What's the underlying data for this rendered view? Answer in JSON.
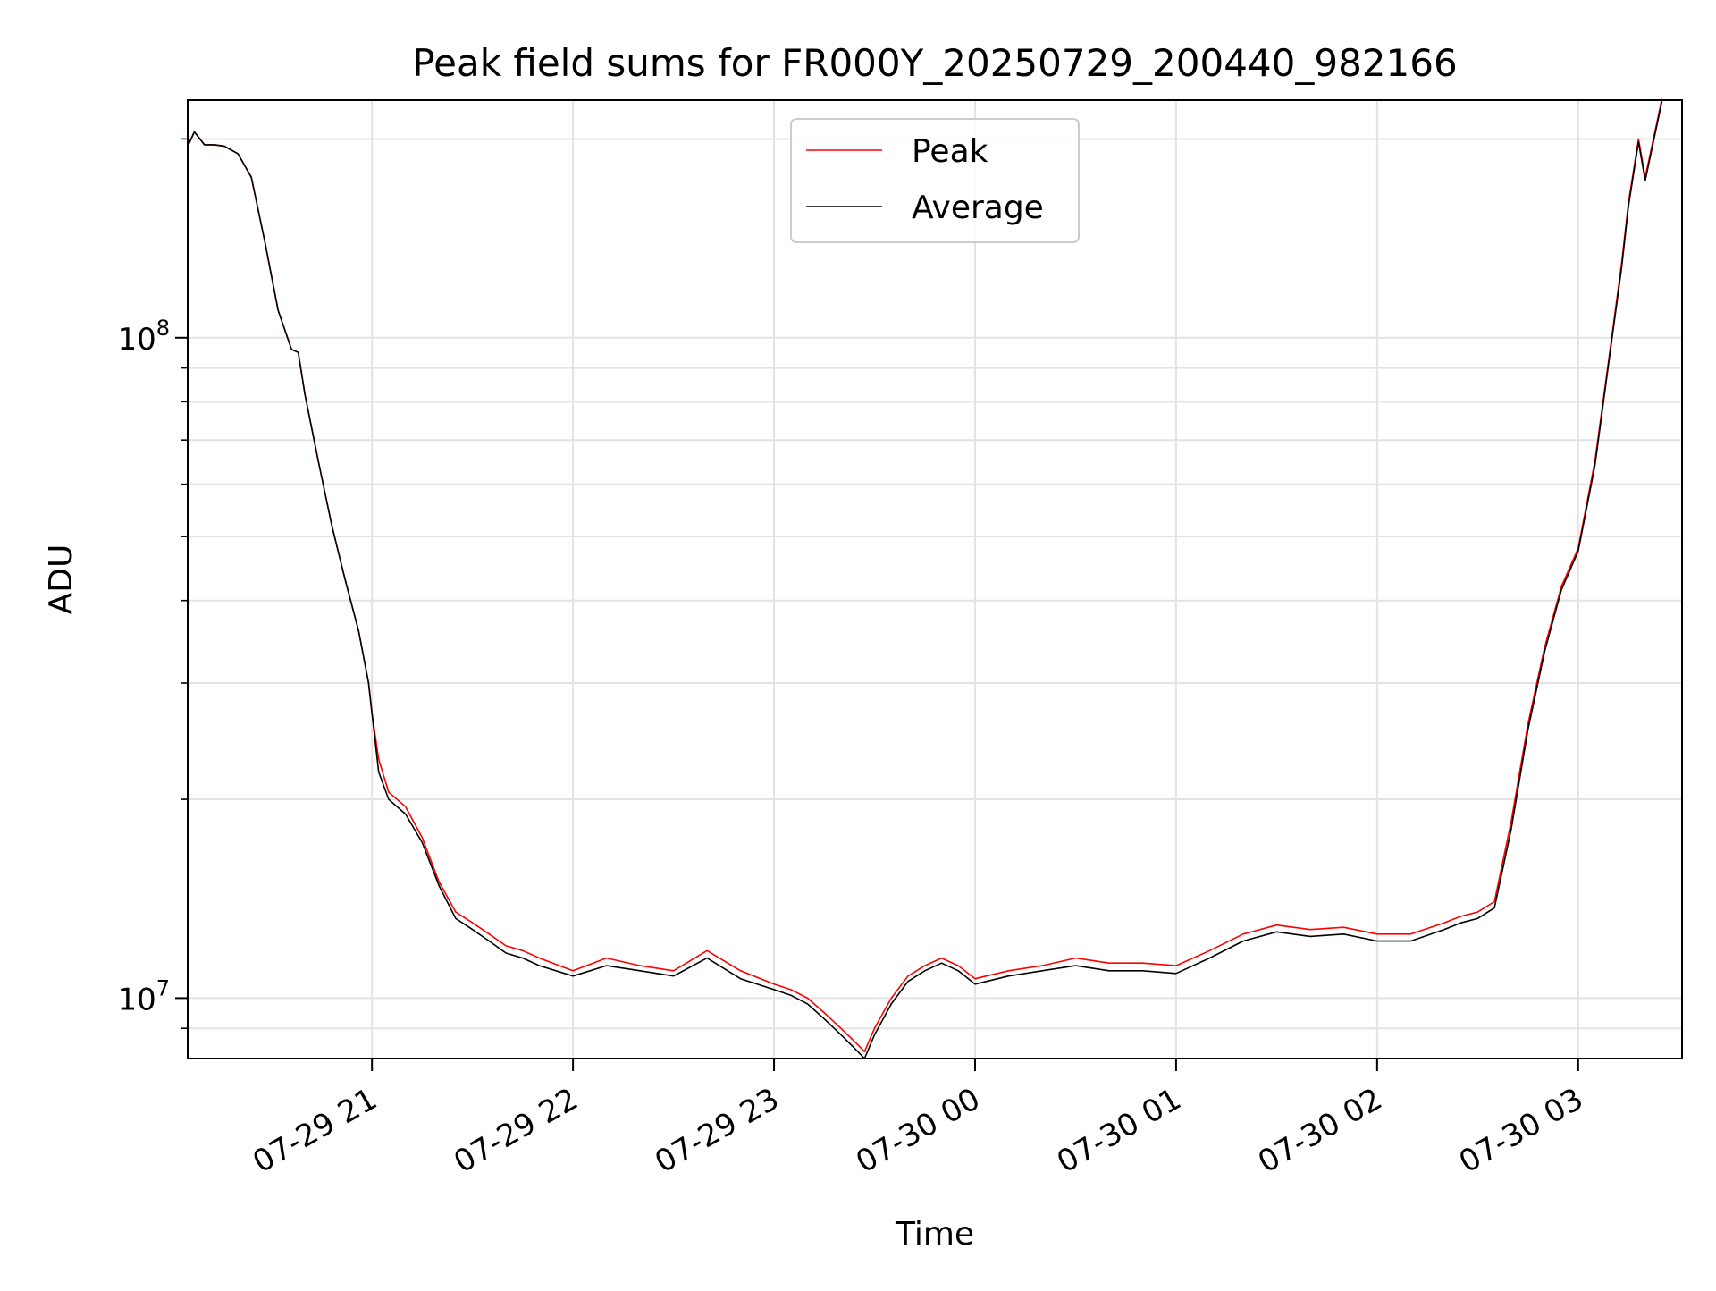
{
  "chart_data": {
    "type": "line",
    "title": "Peak field sums for FR000Y_20250729_200440_982166",
    "xlabel": "Time",
    "ylabel": "ADU",
    "yscale": "log",
    "grid": true,
    "legend_position": "top-center",
    "xlim": [
      "2025-07-29 20:05",
      "2025-07-30 03:31"
    ],
    "ylim": [
      8100000,
      229000000
    ],
    "x_ticks": [
      {
        "x": "2025-07-29 21:00",
        "label": "07-29 21"
      },
      {
        "x": "2025-07-29 22:00",
        "label": "07-29 22"
      },
      {
        "x": "2025-07-29 23:00",
        "label": "07-29 23"
      },
      {
        "x": "2025-07-30 00:00",
        "label": "07-30 00"
      },
      {
        "x": "2025-07-30 01:00",
        "label": "07-30 01"
      },
      {
        "x": "2025-07-30 02:00",
        "label": "07-30 02"
      },
      {
        "x": "2025-07-30 03:00",
        "label": "07-30 03"
      }
    ],
    "y_major_ticks": [
      {
        "value": 10000000,
        "base": "10",
        "exp": "7"
      },
      {
        "value": 100000000,
        "base": "10",
        "exp": "8"
      }
    ],
    "y_minor_ticks": [
      9000000,
      20000000,
      30000000,
      40000000,
      50000000,
      60000000,
      70000000,
      80000000,
      90000000,
      200000000
    ],
    "series": [
      {
        "name": "Peak",
        "color": "#ff0000",
        "x": [
          "2025-07-29 20:05",
          "2025-07-29 20:07",
          "2025-07-29 20:10",
          "2025-07-29 20:13",
          "2025-07-29 20:16",
          "2025-07-29 20:20",
          "2025-07-29 20:24",
          "2025-07-29 20:28",
          "2025-07-29 20:32",
          "2025-07-29 20:36",
          "2025-07-29 20:38",
          "2025-07-29 20:40",
          "2025-07-29 20:44",
          "2025-07-29 20:48",
          "2025-07-29 20:52",
          "2025-07-29 20:56",
          "2025-07-29 20:59",
          "2025-07-29 21:00",
          "2025-07-29 21:02",
          "2025-07-29 21:05",
          "2025-07-29 21:10",
          "2025-07-29 21:15",
          "2025-07-29 21:20",
          "2025-07-29 21:25",
          "2025-07-29 21:30",
          "2025-07-29 21:35",
          "2025-07-29 21:40",
          "2025-07-29 21:45",
          "2025-07-29 21:50",
          "2025-07-29 22:00",
          "2025-07-29 22:10",
          "2025-07-29 22:20",
          "2025-07-29 22:30",
          "2025-07-29 22:40",
          "2025-07-29 22:50",
          "2025-07-29 23:00",
          "2025-07-29 23:05",
          "2025-07-29 23:10",
          "2025-07-29 23:15",
          "2025-07-29 23:20",
          "2025-07-29 23:24",
          "2025-07-29 23:27",
          "2025-07-29 23:30",
          "2025-07-29 23:35",
          "2025-07-29 23:40",
          "2025-07-29 23:45",
          "2025-07-29 23:50",
          "2025-07-29 23:55",
          "2025-07-30 00:00",
          "2025-07-30 00:10",
          "2025-07-30 00:20",
          "2025-07-30 00:30",
          "2025-07-30 00:40",
          "2025-07-30 00:50",
          "2025-07-30 01:00",
          "2025-07-30 01:10",
          "2025-07-30 01:20",
          "2025-07-30 01:30",
          "2025-07-30 01:40",
          "2025-07-30 01:50",
          "2025-07-30 02:00",
          "2025-07-30 02:10",
          "2025-07-30 02:20",
          "2025-07-30 02:25",
          "2025-07-30 02:30",
          "2025-07-30 02:35",
          "2025-07-30 02:40",
          "2025-07-30 02:45",
          "2025-07-30 02:50",
          "2025-07-30 02:55",
          "2025-07-30 03:00",
          "2025-07-30 03:05",
          "2025-07-30 03:10",
          "2025-07-30 03:13",
          "2025-07-30 03:15",
          "2025-07-30 03:18",
          "2025-07-30 03:20",
          "2025-07-30 03:25"
        ],
        "y": [
          195000000,
          205000000,
          196000000,
          196000000,
          195000000,
          190000000,
          175000000,
          140000000,
          110000000,
          96000000,
          95000000,
          82000000,
          65000000,
          52000000,
          43000000,
          36000000,
          30000000,
          27000000,
          23000000,
          20500000,
          19500000,
          17500000,
          15000000,
          13500000,
          13000000,
          12500000,
          12000000,
          11800000,
          11500000,
          11000000,
          11500000,
          11200000,
          11000000,
          11800000,
          11000000,
          10500000,
          10300000,
          10000000,
          9500000,
          9000000,
          8600000,
          8300000,
          9000000,
          10000000,
          10800000,
          11200000,
          11500000,
          11200000,
          10700000,
          11000000,
          11200000,
          11500000,
          11300000,
          11300000,
          11200000,
          11800000,
          12500000,
          12900000,
          12700000,
          12800000,
          12500000,
          12500000,
          13000000,
          13300000,
          13500000,
          14000000,
          18500000,
          26000000,
          34000000,
          42000000,
          48000000,
          65000000,
          100000000,
          130000000,
          160000000,
          200000000,
          175000000,
          230000000
        ]
      },
      {
        "name": "Average",
        "color": "#000000",
        "x": [
          "2025-07-29 20:05",
          "2025-07-29 20:07",
          "2025-07-29 20:10",
          "2025-07-29 20:13",
          "2025-07-29 20:16",
          "2025-07-29 20:20",
          "2025-07-29 20:24",
          "2025-07-29 20:28",
          "2025-07-29 20:32",
          "2025-07-29 20:36",
          "2025-07-29 20:38",
          "2025-07-29 20:40",
          "2025-07-29 20:44",
          "2025-07-29 20:48",
          "2025-07-29 20:52",
          "2025-07-29 20:56",
          "2025-07-29 20:59",
          "2025-07-29 21:00",
          "2025-07-29 21:02",
          "2025-07-29 21:05",
          "2025-07-29 21:10",
          "2025-07-29 21:15",
          "2025-07-29 21:20",
          "2025-07-29 21:25",
          "2025-07-29 21:30",
          "2025-07-29 21:35",
          "2025-07-29 21:40",
          "2025-07-29 21:45",
          "2025-07-29 21:50",
          "2025-07-29 22:00",
          "2025-07-29 22:10",
          "2025-07-29 22:20",
          "2025-07-29 22:30",
          "2025-07-29 22:40",
          "2025-07-29 22:50",
          "2025-07-29 23:00",
          "2025-07-29 23:05",
          "2025-07-29 23:10",
          "2025-07-29 23:15",
          "2025-07-29 23:20",
          "2025-07-29 23:24",
          "2025-07-29 23:27",
          "2025-07-29 23:30",
          "2025-07-29 23:35",
          "2025-07-29 23:40",
          "2025-07-29 23:45",
          "2025-07-29 23:50",
          "2025-07-29 23:55",
          "2025-07-30 00:00",
          "2025-07-30 00:10",
          "2025-07-30 00:20",
          "2025-07-30 00:30",
          "2025-07-30 00:40",
          "2025-07-30 00:50",
          "2025-07-30 01:00",
          "2025-07-30 01:10",
          "2025-07-30 01:20",
          "2025-07-30 01:30",
          "2025-07-30 01:40",
          "2025-07-30 01:50",
          "2025-07-30 02:00",
          "2025-07-30 02:10",
          "2025-07-30 02:20",
          "2025-07-30 02:25",
          "2025-07-30 02:30",
          "2025-07-30 02:35",
          "2025-07-30 02:40",
          "2025-07-30 02:45",
          "2025-07-30 02:50",
          "2025-07-30 02:55",
          "2025-07-30 03:00",
          "2025-07-30 03:05",
          "2025-07-30 03:10",
          "2025-07-30 03:13",
          "2025-07-30 03:15",
          "2025-07-30 03:18",
          "2025-07-30 03:20",
          "2025-07-30 03:25"
        ],
        "y": [
          195000000,
          205000000,
          196000000,
          196000000,
          195000000,
          190000000,
          175000000,
          140000000,
          110000000,
          96000000,
          95000000,
          82000000,
          65000000,
          52000000,
          43000000,
          36000000,
          30000000,
          27000000,
          22000000,
          20000000,
          19000000,
          17200000,
          14800000,
          13200000,
          12700000,
          12200000,
          11700000,
          11500000,
          11200000,
          10800000,
          11200000,
          11000000,
          10800000,
          11500000,
          10700000,
          10300000,
          10100000,
          9800000,
          9300000,
          8800000,
          8400000,
          8100000,
          8800000,
          9800000,
          10600000,
          11000000,
          11300000,
          11000000,
          10500000,
          10800000,
          11000000,
          11200000,
          11000000,
          11000000,
          10900000,
          11500000,
          12200000,
          12600000,
          12400000,
          12500000,
          12200000,
          12200000,
          12700000,
          13000000,
          13200000,
          13700000,
          18000000,
          25500000,
          33500000,
          41500000,
          47500000,
          64000000,
          99000000,
          128000000,
          158000000,
          198000000,
          173000000,
          228000000
        ]
      }
    ]
  }
}
